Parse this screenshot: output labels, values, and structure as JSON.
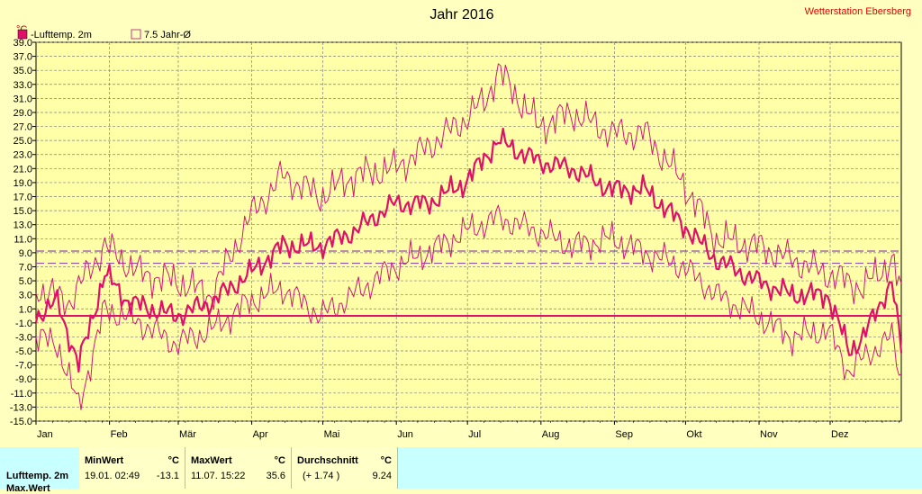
{
  "chart_data": {
    "type": "line",
    "title": "Jahr 2016",
    "station": "Wetterstation Ebersberg",
    "unit": "°C",
    "ylim": [
      -15,
      39
    ],
    "yticks": [
      "39.0",
      "37.0",
      "35.0",
      "33.0",
      "31.0",
      "29.0",
      "27.0",
      "25.0",
      "23.0",
      "21.0",
      "19.0",
      "17.0",
      "15.0",
      "13.0",
      "11.0",
      "9.0",
      "7.0",
      "5.0",
      "3.0",
      "1.0",
      "-1.0",
      "-3.0",
      "-5.0",
      "-7.0",
      "-9.0",
      "-11.0",
      "-13.0",
      "-15.0"
    ],
    "months": [
      "Jan",
      "Feb",
      "Mär",
      "Apr",
      "Mai",
      "Jun",
      "Jul",
      "Aug",
      "Sep",
      "Okt",
      "Nov",
      "Dez"
    ],
    "legend": [
      {
        "name": "-Lufttemp. 2m",
        "color": "#e0106a",
        "filled": true
      },
      {
        "name": "7.5 Jahr-Ø",
        "color": "#c04080",
        "filled": false
      }
    ],
    "reference_lines": [
      {
        "value": 9.24,
        "style": "dashed",
        "color": "#9050a0"
      },
      {
        "value": 7.5,
        "style": "dashed",
        "color": "#9050a0"
      },
      {
        "value": 0,
        "style": "solid",
        "color": "#e0106a"
      }
    ],
    "series": [
      {
        "role": "max",
        "x": [
          1,
          15,
          30,
          45,
          60,
          75,
          91,
          105,
          121,
          135,
          152,
          166,
          182,
          191,
          196,
          213,
          227,
          244,
          258,
          274,
          288,
          305,
          320,
          335,
          350,
          362,
          366
        ],
        "values": [
          4,
          2,
          10,
          6,
          5,
          3,
          14,
          20,
          17,
          20,
          21,
          24,
          28,
          31,
          35,
          27,
          29,
          26,
          26,
          19,
          11,
          10,
          8,
          6,
          4,
          8,
          3
        ]
      },
      {
        "role": "mean",
        "x": [
          1,
          10,
          19,
          30,
          40,
          50,
          60,
          75,
          91,
          105,
          121,
          135,
          152,
          166,
          182,
          196,
          213,
          227,
          244,
          258,
          274,
          288,
          305,
          320,
          335,
          344,
          350,
          362,
          366
        ],
        "values": [
          0,
          2,
          -7,
          6,
          2,
          1,
          0,
          2,
          6,
          10,
          10,
          12,
          16,
          16,
          19,
          25,
          22,
          21,
          18,
          18,
          13,
          8,
          5,
          3,
          3,
          -5,
          -3,
          5,
          -5
        ]
      },
      {
        "role": "min",
        "x": [
          1,
          10,
          19,
          30,
          45,
          60,
          75,
          91,
          105,
          121,
          135,
          152,
          166,
          182,
          196,
          213,
          227,
          244,
          258,
          274,
          288,
          305,
          320,
          335,
          344,
          350,
          362,
          366
        ],
        "values": [
          -3,
          -4,
          -13,
          1,
          -1,
          -4,
          -2,
          2,
          4,
          0,
          3,
          7,
          9,
          12,
          14,
          12,
          10,
          11,
          9,
          7,
          3,
          0,
          -3,
          -2,
          -8,
          -6,
          -3,
          -9
        ]
      }
    ]
  },
  "stats": {
    "row_label": "Lufttemp. 2m",
    "row_label2": "Max.Wert",
    "min_header": "MinWert",
    "min_unit": "°C",
    "min_date": "19.01.  02:49",
    "min_value": "-13.1",
    "max_header": "MaxWert",
    "max_unit": "°C",
    "max_date": "11.07.  15:22",
    "max_value": "35.6",
    "avg_header": "Durchschnitt",
    "avg_unit": "°C",
    "avg_diff": "(+ 1.74 )",
    "avg_value": "9.24"
  }
}
